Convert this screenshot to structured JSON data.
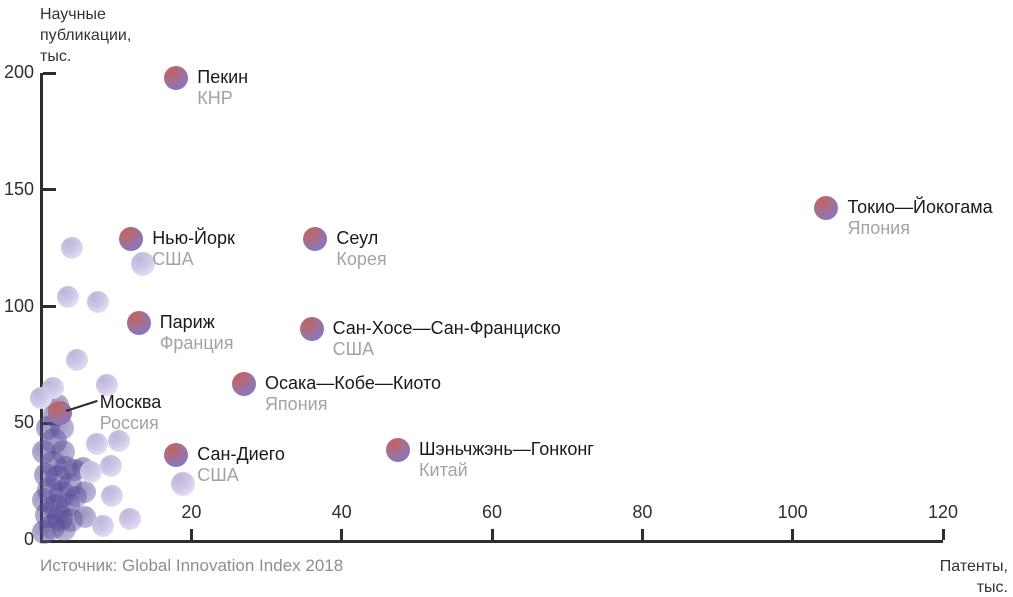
{
  "axis_titles": {
    "y": {
      "line1": "Научные",
      "line2": "публикации,",
      "line3": "тыс."
    },
    "x": {
      "line1": "Патенты,",
      "line2": "тыс."
    }
  },
  "source": "Источник: Global Innovation Index 2018",
  "colors": {
    "axis": "#2d2d2d",
    "city_label": "#1a1a1a",
    "country_label": "#a3a3a3",
    "source_text": "#8f8f8f",
    "labeled_bubble_red": "#c2645c",
    "labeled_bubble_purple": "#8678bf",
    "light_bubble": "#cfc7e6",
    "cluster_bubble": "#5a4d9c"
  },
  "chart_data": {
    "type": "scatter",
    "title": "",
    "xlabel": "Патенты, тыс.",
    "ylabel": "Научные публикации, тыс.",
    "source": "Источник: Global Innovation Index 2018",
    "xlim": [
      0,
      120
    ],
    "ylim": [
      0,
      200
    ],
    "x_ticks": [
      20,
      40,
      60,
      80,
      100,
      120
    ],
    "y_ticks": [
      0,
      50,
      100,
      150,
      200
    ],
    "grid": false,
    "legend": false,
    "series": [
      {
        "name": "dense_cluster_unlabeled",
        "style": "cluster",
        "points": [
          {
            "x": 2.2,
            "y": 58,
            "r": 11
          },
          {
            "x": 1.9,
            "y": 53.5,
            "r": 12
          },
          {
            "x": 0.9,
            "y": 48,
            "r": 12
          },
          {
            "x": 2.8,
            "y": 48,
            "r": 12
          },
          {
            "x": 1.7,
            "y": 42.5,
            "r": 13
          },
          {
            "x": 0.4,
            "y": 37.5,
            "r": 12
          },
          {
            "x": 2.9,
            "y": 37.5,
            "r": 12
          },
          {
            "x": 1.6,
            "y": 32.5,
            "r": 13
          },
          {
            "x": 3.3,
            "y": 31,
            "r": 12
          },
          {
            "x": 0.7,
            "y": 28,
            "r": 12
          },
          {
            "x": 2.3,
            "y": 26.5,
            "r": 13
          },
          {
            "x": 3.9,
            "y": 23.5,
            "r": 12
          },
          {
            "x": 1.2,
            "y": 21.5,
            "r": 13
          },
          {
            "x": 2.8,
            "y": 19.5,
            "r": 13
          },
          {
            "x": 0.4,
            "y": 17,
            "r": 12
          },
          {
            "x": 2,
            "y": 14,
            "r": 13
          },
          {
            "x": 3.6,
            "y": 15,
            "r": 12
          },
          {
            "x": 0.9,
            "y": 10.5,
            "r": 13
          },
          {
            "x": 2.5,
            "y": 9.5,
            "r": 13
          },
          {
            "x": 4,
            "y": 8.5,
            "r": 12
          },
          {
            "x": 1.5,
            "y": 5.5,
            "r": 13
          },
          {
            "x": 3.1,
            "y": 4.5,
            "r": 12
          },
          {
            "x": 0.4,
            "y": 3.5,
            "r": 12
          },
          {
            "x": 4.5,
            "y": 30,
            "r": 11
          },
          {
            "x": 4.7,
            "y": 18.5,
            "r": 11
          },
          {
            "x": 5.6,
            "y": 31,
            "r": 11
          },
          {
            "x": 5.9,
            "y": 20.5,
            "r": 11
          },
          {
            "x": 5.9,
            "y": 10,
            "r": 11
          }
        ]
      },
      {
        "name": "background_unlabeled",
        "style": "light",
        "points": [
          {
            "x": 4.1,
            "y": 125,
            "r": 11
          },
          {
            "x": 3.6,
            "y": 104,
            "r": 11
          },
          {
            "x": 7.6,
            "y": 102,
            "r": 11
          },
          {
            "x": 13.6,
            "y": 118,
            "r": 12
          },
          {
            "x": 4.8,
            "y": 77,
            "r": 11
          },
          {
            "x": 1.6,
            "y": 65,
            "r": 11
          },
          {
            "x": 8.8,
            "y": 66.5,
            "r": 11
          },
          {
            "x": 0,
            "y": 61,
            "r": 11
          },
          {
            "x": 7.4,
            "y": 41,
            "r": 11
          },
          {
            "x": 10.4,
            "y": 42.5,
            "r": 11
          },
          {
            "x": 9.3,
            "y": 31.5,
            "r": 11
          },
          {
            "x": 6.6,
            "y": 29,
            "r": 11
          },
          {
            "x": 9.4,
            "y": 19,
            "r": 11
          },
          {
            "x": 8.2,
            "y": 6,
            "r": 11
          },
          {
            "x": 11.8,
            "y": 9,
            "r": 11
          },
          {
            "x": 18.9,
            "y": 24,
            "r": 12
          }
        ]
      },
      {
        "name": "labeled_cities",
        "style": "labeled",
        "points": [
          {
            "city": "Пекин",
            "country": "КНР",
            "x": 18,
            "y": 198,
            "r": 12
          },
          {
            "city": "Токио—Йокогама",
            "country": "Япония",
            "x": 104.5,
            "y": 142,
            "r": 12
          },
          {
            "city": "Нью-Йорк",
            "country": "США",
            "x": 12,
            "y": 129,
            "r": 12
          },
          {
            "city": "Сеул",
            "country": "Корея",
            "x": 36.5,
            "y": 129,
            "r": 12
          },
          {
            "city": "Париж",
            "country": "Франция",
            "x": 13,
            "y": 93,
            "r": 12
          },
          {
            "city": "Сан-Хосе—Сан-Франциско",
            "country": "США",
            "x": 36,
            "y": 90.5,
            "r": 12
          },
          {
            "city": "Осака—Кобе—Киото",
            "country": "Япония",
            "x": 27,
            "y": 67,
            "r": 12
          },
          {
            "city": "Москва",
            "country": "Россия",
            "x": 2.5,
            "y": 54.5,
            "r": 12,
            "callout": true
          },
          {
            "city": "Сан-Диего",
            "country": "США",
            "x": 18,
            "y": 36.5,
            "r": 12
          },
          {
            "city": "Шэньчжэнь—Гонконг",
            "country": "Китай",
            "x": 47.5,
            "y": 38.5,
            "r": 12
          }
        ]
      }
    ]
  }
}
